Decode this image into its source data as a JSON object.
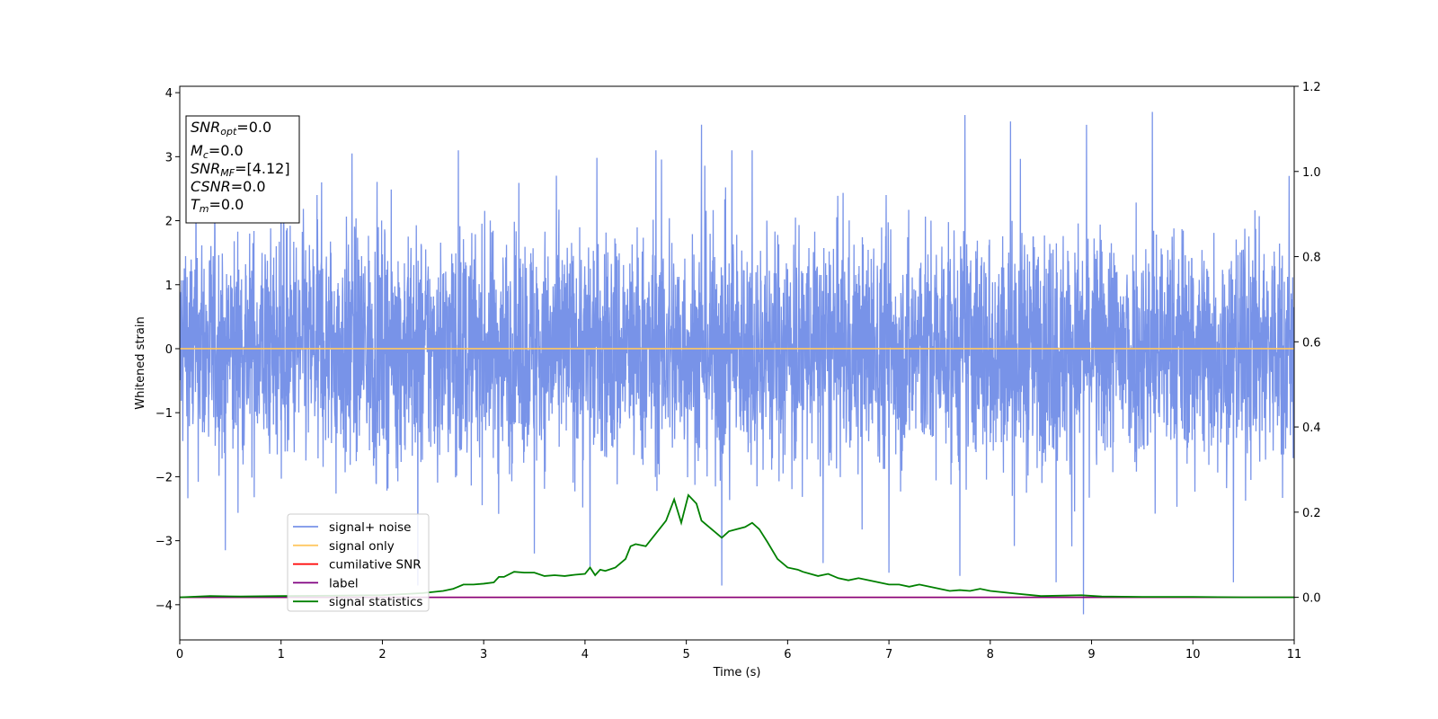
{
  "chart_data": {
    "type": "line",
    "xlabel": "Time (s)",
    "ylabel": "Whitened strain",
    "xlim": [
      0,
      11
    ],
    "ylim": [
      -4.55,
      4.1
    ],
    "y2lim": [
      -0.1,
      1.2
    ],
    "x_ticks": [
      0,
      1,
      2,
      3,
      4,
      5,
      6,
      7,
      8,
      9,
      10,
      11
    ],
    "y_ticks": [
      -4,
      -3,
      -2,
      -1,
      0,
      1,
      2,
      3,
      4
    ],
    "y2_ticks": [
      0.0,
      0.2,
      0.4,
      0.6,
      0.8,
      1.0,
      1.2
    ],
    "legend_placement": "lower-left",
    "grid": false,
    "colors": {
      "signal_noise": "#7893e8",
      "signal_only": "#ffc862",
      "cumulative_snr": "#ff0000",
      "label": "#800080",
      "signal_statistics": "#008000"
    },
    "info_box": [
      {
        "main": "SNR",
        "sub": "opt",
        "value": "=0.0"
      },
      {
        "main": "M",
        "sub": "c",
        "value": "=0.0"
      },
      {
        "main": "SNR",
        "sub": "MF",
        "value": "=[4.12]"
      },
      {
        "main": "CSNR",
        "sub": "",
        "value": "=0.0"
      },
      {
        "main": "T",
        "sub": "m",
        "value": "=0.0"
      }
    ],
    "series": [
      {
        "name": "signal+ noise",
        "axis": "left",
        "style": "noise",
        "x_range": [
          0,
          11
        ],
        "typical_amplitude": 2.3,
        "spikes": [
          {
            "x": 0.45,
            "y": -3.15
          },
          {
            "x": 1.0,
            "y": 3.0
          },
          {
            "x": 1.4,
            "y": 2.6
          },
          {
            "x": 1.7,
            "y": 3.05
          },
          {
            "x": 2.35,
            "y": -3.7
          },
          {
            "x": 2.75,
            "y": 3.1
          },
          {
            "x": 3.5,
            "y": -3.2
          },
          {
            "x": 4.05,
            "y": -3.4
          },
          {
            "x": 4.7,
            "y": 3.1
          },
          {
            "x": 5.15,
            "y": 3.5
          },
          {
            "x": 5.35,
            "y": -3.7
          },
          {
            "x": 5.45,
            "y": 3.1
          },
          {
            "x": 5.65,
            "y": 3.1
          },
          {
            "x": 6.35,
            "y": -3.35
          },
          {
            "x": 7.0,
            "y": -3.5
          },
          {
            "x": 7.7,
            "y": -3.55
          },
          {
            "x": 7.75,
            "y": 3.65
          },
          {
            "x": 8.2,
            "y": 3.55
          },
          {
            "x": 8.65,
            "y": -3.65
          },
          {
            "x": 8.92,
            "y": -4.15
          },
          {
            "x": 9.6,
            "y": 3.7
          },
          {
            "x": 10.4,
            "y": -3.65
          },
          {
            "x": 10.95,
            "y": 2.7
          }
        ]
      },
      {
        "name": "signal only",
        "axis": "left",
        "x": [
          0,
          11
        ],
        "y": [
          0,
          0
        ]
      },
      {
        "name": "cumilative SNR",
        "axis": "right",
        "x": [
          0,
          11
        ],
        "y": [
          0,
          0
        ]
      },
      {
        "name": "label",
        "axis": "right",
        "x": [
          0,
          11
        ],
        "y": [
          0,
          0
        ]
      },
      {
        "name": "signal statistics",
        "axis": "right",
        "x": [
          0.0,
          0.3,
          0.6,
          1.0,
          1.5,
          2.0,
          2.4,
          2.6,
          2.7,
          2.8,
          2.9,
          3.0,
          3.1,
          3.15,
          3.2,
          3.3,
          3.4,
          3.5,
          3.6,
          3.7,
          3.8,
          3.9,
          4.0,
          4.05,
          4.1,
          4.15,
          4.2,
          4.3,
          4.4,
          4.45,
          4.5,
          4.6,
          4.7,
          4.8,
          4.88,
          4.95,
          5.02,
          5.1,
          5.15,
          5.25,
          5.35,
          5.42,
          5.5,
          5.58,
          5.65,
          5.72,
          5.8,
          5.9,
          6.0,
          6.1,
          6.15,
          6.3,
          6.4,
          6.5,
          6.6,
          6.7,
          6.8,
          6.9,
          7.0,
          7.1,
          7.2,
          7.3,
          7.4,
          7.5,
          7.6,
          7.7,
          7.8,
          7.9,
          8.0,
          8.2,
          8.5,
          8.9,
          9.1,
          9.5,
          10.0,
          10.5,
          11.0
        ],
        "y": [
          0.0,
          0.003,
          0.002,
          0.003,
          0.004,
          0.005,
          0.01,
          0.015,
          0.02,
          0.03,
          0.03,
          0.032,
          0.035,
          0.048,
          0.048,
          0.06,
          0.058,
          0.058,
          0.05,
          0.052,
          0.05,
          0.053,
          0.055,
          0.07,
          0.052,
          0.065,
          0.062,
          0.07,
          0.09,
          0.12,
          0.125,
          0.12,
          0.15,
          0.18,
          0.23,
          0.175,
          0.24,
          0.22,
          0.18,
          0.16,
          0.14,
          0.155,
          0.16,
          0.165,
          0.175,
          0.16,
          0.13,
          0.09,
          0.07,
          0.065,
          0.06,
          0.05,
          0.055,
          0.045,
          0.04,
          0.045,
          0.04,
          0.035,
          0.03,
          0.03,
          0.025,
          0.03,
          0.025,
          0.02,
          0.015,
          0.017,
          0.015,
          0.02,
          0.015,
          0.01,
          0.003,
          0.005,
          0.002,
          0.001,
          0.001,
          0.0,
          0.0
        ]
      }
    ]
  }
}
